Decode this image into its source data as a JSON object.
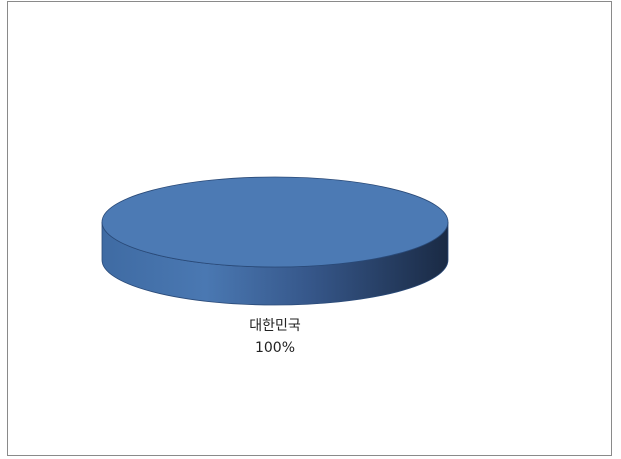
{
  "chart_data": {
    "type": "pie",
    "style": "3d",
    "categories": [
      "대한민국"
    ],
    "values": [
      100
    ],
    "data_labels": [
      {
        "category": "대한민국",
        "percent": "100%"
      }
    ],
    "title": "",
    "legend": "none",
    "grid": false,
    "colors": {
      "top_face": "#4c7ab4",
      "rim_light": "#4a76b0",
      "rim_dark": "#1d2f4b",
      "edge": "#2a4a78",
      "frame_border": "#8a8a8a"
    }
  }
}
